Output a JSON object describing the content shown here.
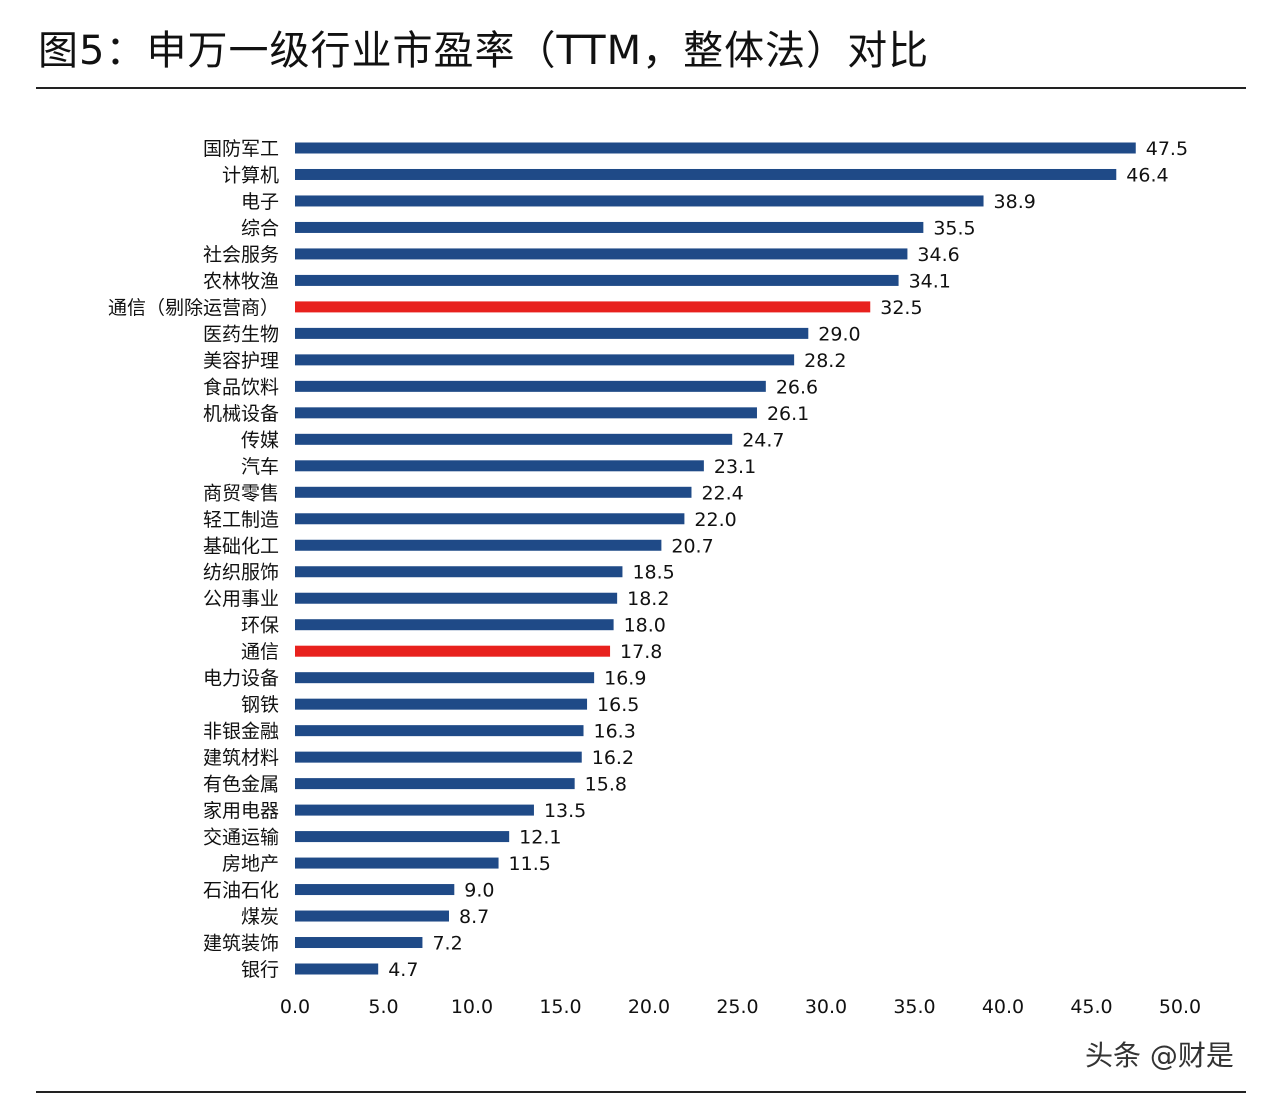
{
  "title": "图5：申万一级行业市盈率（TTM，整体法）对比",
  "watermark": "头条 @财是",
  "chart_data": {
    "type": "bar",
    "orientation": "horizontal",
    "title": "图5：申万一级行业市盈率（TTM，整体法）对比",
    "categories": [
      "国防军工",
      "计算机",
      "电子",
      "综合",
      "社会服务",
      "农林牧渔",
      "通信（剔除运营商）",
      "医药生物",
      "美容护理",
      "食品饮料",
      "机械设备",
      "传媒",
      "汽车",
      "商贸零售",
      "轻工制造",
      "基础化工",
      "纺织服饰",
      "公用事业",
      "环保",
      "通信",
      "电力设备",
      "钢铁",
      "非银金融",
      "建筑材料",
      "有色金属",
      "家用电器",
      "交通运输",
      "房地产",
      "石油石化",
      "煤炭",
      "建筑装饰",
      "银行"
    ],
    "values": [
      47.5,
      46.4,
      38.9,
      35.5,
      34.6,
      34.1,
      32.5,
      29.0,
      28.2,
      26.6,
      26.1,
      24.7,
      23.1,
      22.4,
      22.0,
      20.7,
      18.5,
      18.2,
      18.0,
      17.8,
      16.9,
      16.5,
      16.3,
      16.2,
      15.8,
      13.5,
      12.1,
      11.5,
      9.0,
      8.7,
      7.2,
      4.7
    ],
    "value_labels": [
      "47.5",
      "46.4",
      "38.9",
      "35.5",
      "34.6",
      "34.1",
      "32.5",
      "29.0",
      "28.2",
      "26.6",
      "26.1",
      "24.7",
      "23.1",
      "22.4",
      "22.0",
      "20.7",
      "18.5",
      "18.2",
      "18.0",
      "17.8",
      "16.9",
      "16.5",
      "16.3",
      "16.2",
      "15.8",
      "13.5",
      "12.1",
      "11.5",
      "9.0",
      "8.7",
      "7.2",
      "4.7"
    ],
    "highlight": [
      "通信（剔除运营商）",
      "通信"
    ],
    "xlim": [
      0,
      50
    ],
    "xticks": [
      "0.0",
      "5.0",
      "10.0",
      "15.0",
      "20.0",
      "25.0",
      "30.0",
      "35.0",
      "40.0",
      "45.0",
      "50.0"
    ],
    "grid": false,
    "colors": {
      "default": "#1f4a87",
      "highlight": "#e8211d"
    }
  }
}
